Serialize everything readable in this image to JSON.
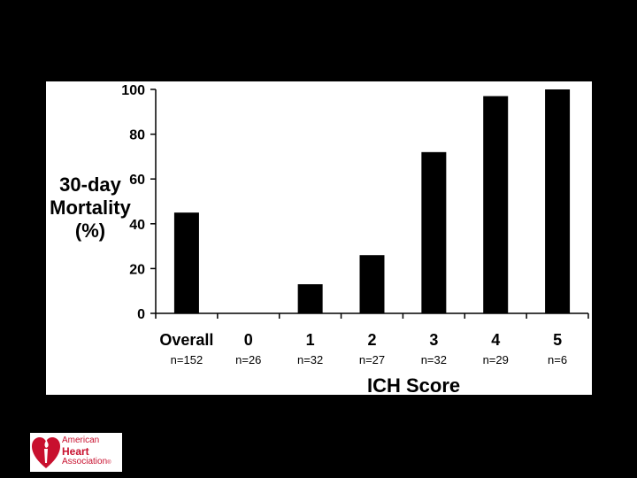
{
  "chart_data": {
    "type": "bar",
    "categories": [
      "Overall",
      "0",
      "1",
      "2",
      "3",
      "4",
      "5"
    ],
    "sample_sizes": [
      "n=152",
      "n=26",
      "n=32",
      "n=27",
      "n=32",
      "n=29",
      "n=6"
    ],
    "values": [
      45,
      0,
      13,
      26,
      72,
      97,
      100
    ],
    "ylabel_lines": [
      "30-day",
      "Mortality",
      "(%)"
    ],
    "xlabel": "ICH Score",
    "ylim": [
      0,
      100
    ],
    "yticks": [
      0,
      20,
      40,
      60,
      80,
      100
    ],
    "grid": false,
    "bar_color": "#000000"
  },
  "logo": {
    "lines": [
      "American",
      "Heart",
      "Association"
    ],
    "mark": "®",
    "icon": "heart-torch-icon",
    "color": "#c8102e"
  }
}
